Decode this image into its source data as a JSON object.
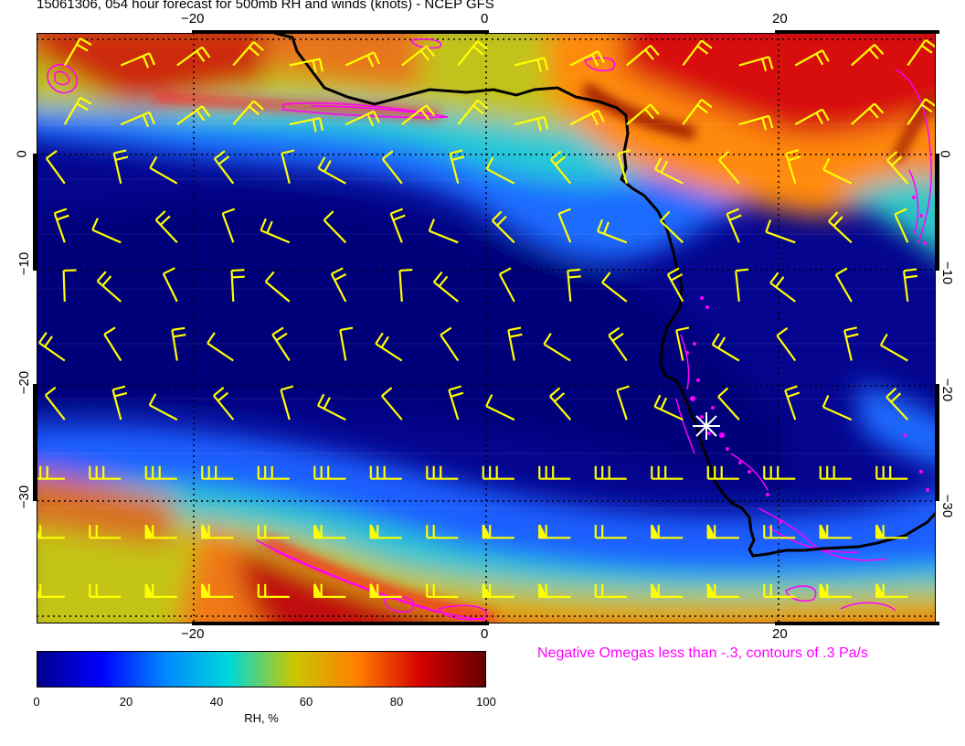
{
  "title": "15061306, 054 hour forecast for 500mb RH and winds (knots) - NCEP GFS",
  "axes": {
    "top_ticks": [
      "−20",
      "0",
      "20"
    ],
    "bottom_ticks": [
      "−20",
      "0",
      "20"
    ],
    "left_ticks": [
      "0",
      "−10",
      "−20",
      "−30"
    ],
    "right_ticks": [
      "0",
      "−10",
      "−20",
      "−30"
    ],
    "lon_range": [
      -31,
      30.5
    ],
    "lat_range": [
      10.5,
      -40
    ]
  },
  "omega_note": "Negative Omegas less than -.3, contours of .3 Pa/s",
  "colorbar": {
    "ticks": [
      "0",
      "20",
      "40",
      "60",
      "80",
      "100"
    ],
    "title": "RH, %",
    "range": [
      0,
      100
    ],
    "stops": [
      "#00008b",
      "#0000ff",
      "#0088ff",
      "#00d8d8",
      "#c8c800",
      "#ff7f00",
      "#d40000",
      "#640000"
    ]
  },
  "colors": {
    "coastline": "#000000",
    "wind_barbs": "#ffff00",
    "omega_contours": "#ff00ff",
    "marker": "#ffffff"
  },
  "icons": {
    "marker": "asterisk-marker-icon"
  }
}
